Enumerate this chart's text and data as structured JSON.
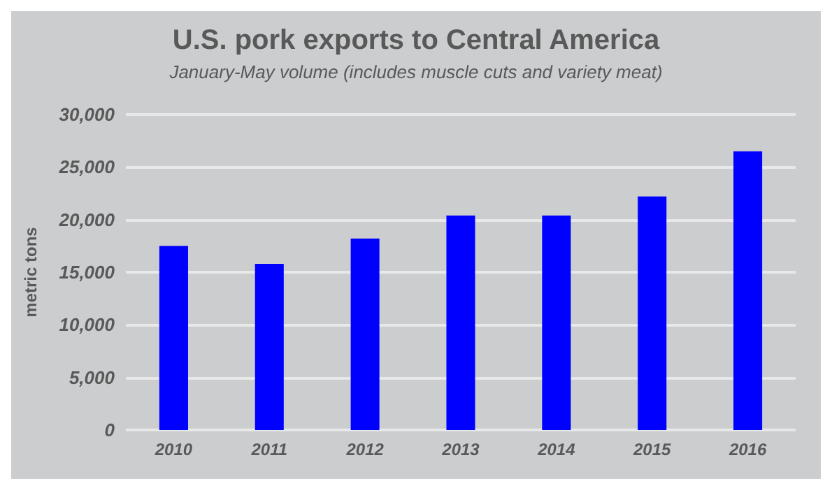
{
  "chart_data": {
    "type": "bar",
    "title": "U.S. pork exports to Central America",
    "subtitle": "January-May volume (includes muscle cuts and variety meat)",
    "ylabel": "metric tons",
    "categories": [
      "2010",
      "2011",
      "2012",
      "2013",
      "2014",
      "2015",
      "2016"
    ],
    "values": [
      17500,
      15800,
      18200,
      20400,
      20400,
      22200,
      26500
    ],
    "color": "#0000ff",
    "ylim": [
      0,
      30000
    ],
    "yticks": [
      0,
      {
        "value": 5000,
        "label": "5,000"
      },
      {
        "value": 10000,
        "label": "10,000"
      },
      {
        "value": 15000,
        "label": "15,000"
      },
      {
        "value": 20000,
        "label": "20,000"
      },
      {
        "value": 25000,
        "label": "25,000"
      },
      {
        "value": 30000,
        "label": "30,000"
      }
    ],
    "grid": "y"
  }
}
